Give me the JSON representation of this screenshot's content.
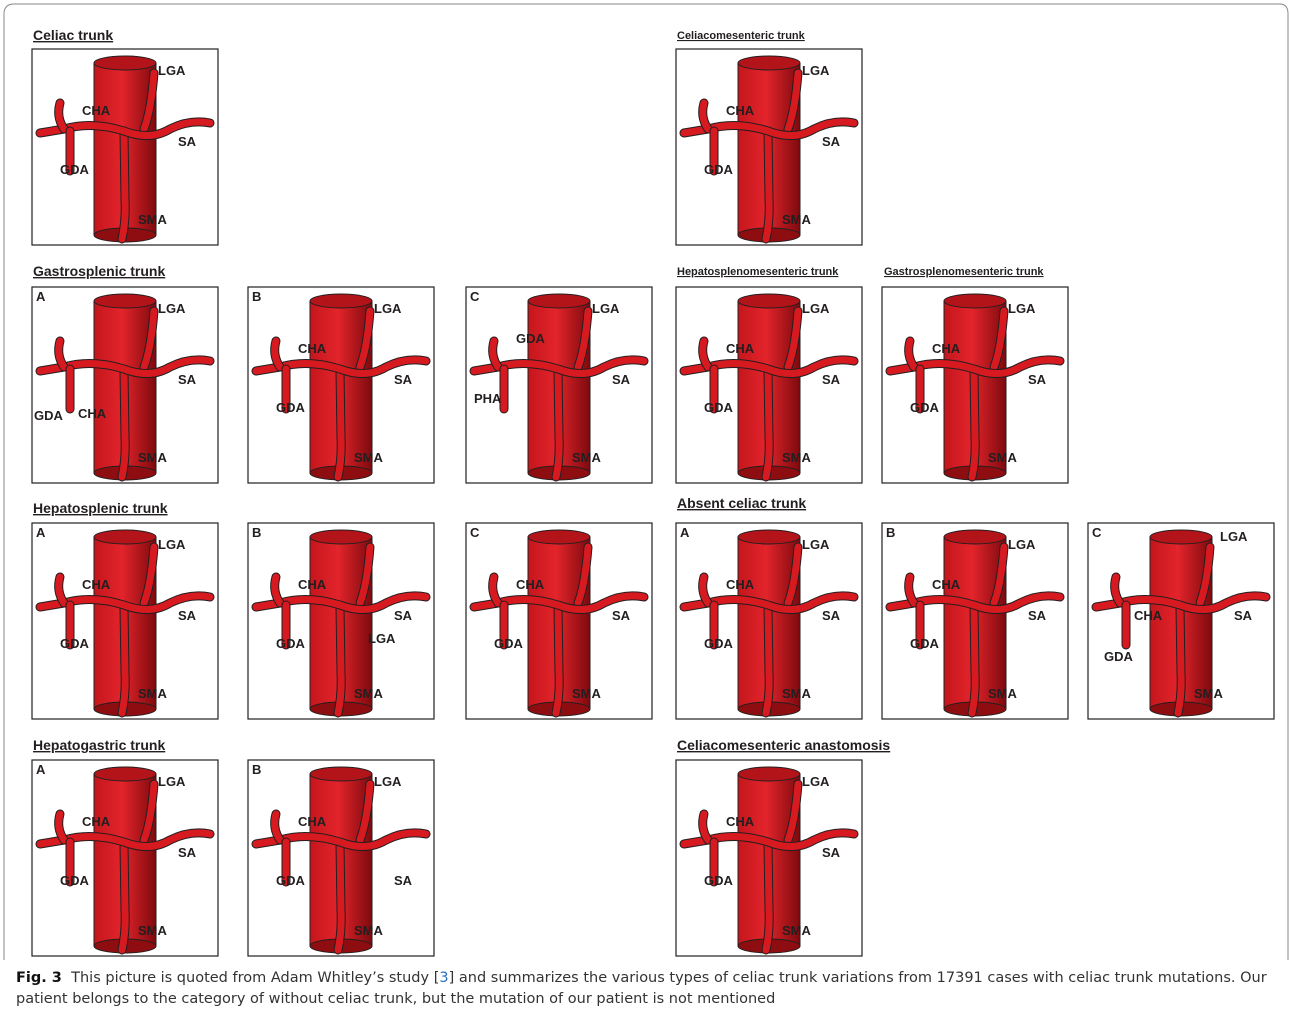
{
  "sections": [
    {
      "title": "Celiac trunk",
      "panels": [
        {
          "labels": [
            "LGA",
            "CHA",
            "SA",
            "GDA",
            "SMA"
          ]
        }
      ]
    },
    {
      "title": "Celiacomesenteric trunk",
      "panels": [
        {
          "labels": [
            "LGA",
            "CHA",
            "SA",
            "GDA",
            "SMA"
          ]
        }
      ]
    },
    {
      "title": "Gastrosplenic trunk",
      "panels": [
        {
          "letter": "A",
          "labels": [
            "LGA",
            "CHA",
            "SA",
            "GDA",
            "SMA"
          ]
        },
        {
          "letter": "B",
          "labels": [
            "LGA",
            "CHA",
            "SA",
            "GDA",
            "SMA"
          ]
        },
        {
          "letter": "C",
          "labels": [
            "LGA",
            "GDA",
            "SA",
            "PHA",
            "SMA"
          ]
        }
      ]
    },
    {
      "title": "Hepatosplenomesenteric trunk",
      "panels": [
        {
          "labels": [
            "LGA",
            "CHA",
            "SA",
            "GDA",
            "SMA"
          ]
        }
      ]
    },
    {
      "title": "Gastrosplenomesenteric trunk",
      "panels": [
        {
          "labels": [
            "LGA",
            "CHA",
            "SA",
            "GDA",
            "SMA"
          ]
        }
      ]
    },
    {
      "title": "Hepatosplenic trunk",
      "panels": [
        {
          "letter": "A",
          "labels": [
            "LGA",
            "CHA",
            "SA",
            "GDA",
            "SMA"
          ]
        },
        {
          "letter": "B",
          "labels": [
            "CHA",
            "SA",
            "LGA",
            "GDA",
            "SMA"
          ]
        },
        {
          "letter": "C",
          "labels": [
            "CHA",
            "SA",
            "GDA",
            "SMA"
          ]
        }
      ]
    },
    {
      "title": "Absent celiac trunk",
      "panels": [
        {
          "letter": "A",
          "labels": [
            "LGA",
            "CHA",
            "SA",
            "GDA",
            "SMA"
          ]
        },
        {
          "letter": "B",
          "labels": [
            "LGA",
            "CHA",
            "SA",
            "GDA",
            "SMA"
          ]
        },
        {
          "letter": "C",
          "labels": [
            "LGA",
            "CHA",
            "SA",
            "GDA",
            "SMA"
          ]
        }
      ]
    },
    {
      "title": "Hepatogastric trunk",
      "panels": [
        {
          "letter": "A",
          "labels": [
            "LGA",
            "CHA",
            "SA",
            "GDA",
            "SMA"
          ]
        },
        {
          "letter": "B",
          "labels": [
            "LGA",
            "CHA",
            "SA",
            "GDA",
            "SMA"
          ]
        }
      ]
    },
    {
      "title": "Celiacomesenteric anastomosis",
      "panels": [
        {
          "labels": [
            "LGA",
            "CHA",
            "SA",
            "GDA",
            "SMA"
          ]
        }
      ]
    }
  ],
  "caption": {
    "label": "Fig. 3",
    "before": "This picture is quoted from Adam Whitley’s study [",
    "ref": "3",
    "after": "] and summarizes the various types of celiac trunk variations from 17391 cases with celiac trunk mutations. Our patient belongs to the category of without celiac trunk, but the mutation of our patient is not mentioned"
  }
}
